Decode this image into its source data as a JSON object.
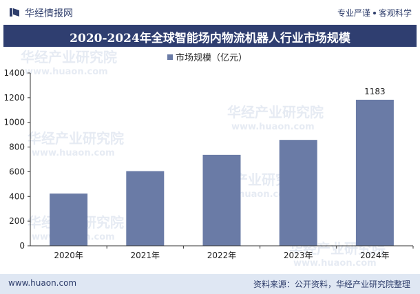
{
  "header": {
    "brand_name": "华经情报网",
    "slogan_left": "专业严谨",
    "slogan_right": "客观科学"
  },
  "title": "2020-2024年全球智能场内物流机器人行业市场规模",
  "watermark": {
    "cn": "华经产业研究院",
    "url": "www.huaon.com"
  },
  "chart_data": {
    "type": "bar",
    "title": "2020-2024年全球智能场内物流机器人行业市场规模",
    "categories": [
      "2020年",
      "2021年",
      "2022年",
      "2023年",
      "2024年"
    ],
    "series": [
      {
        "name": "市场规模（亿元）",
        "values": [
          423,
          605,
          737,
          858,
          1183
        ],
        "color": "#6a7ba6"
      }
    ],
    "data_labels": [
      "",
      "",
      "",
      "",
      "1183"
    ],
    "xlabel": "",
    "ylabel": "",
    "ylim": [
      0,
      1400
    ],
    "yticks": [
      0,
      200,
      400,
      600,
      800,
      1000,
      1200,
      1400
    ],
    "grid": false,
    "legend": "top-center"
  },
  "footer": {
    "url": "www.huaon.com",
    "source": "资料来源：公开资料，华经产业研究院整理"
  }
}
